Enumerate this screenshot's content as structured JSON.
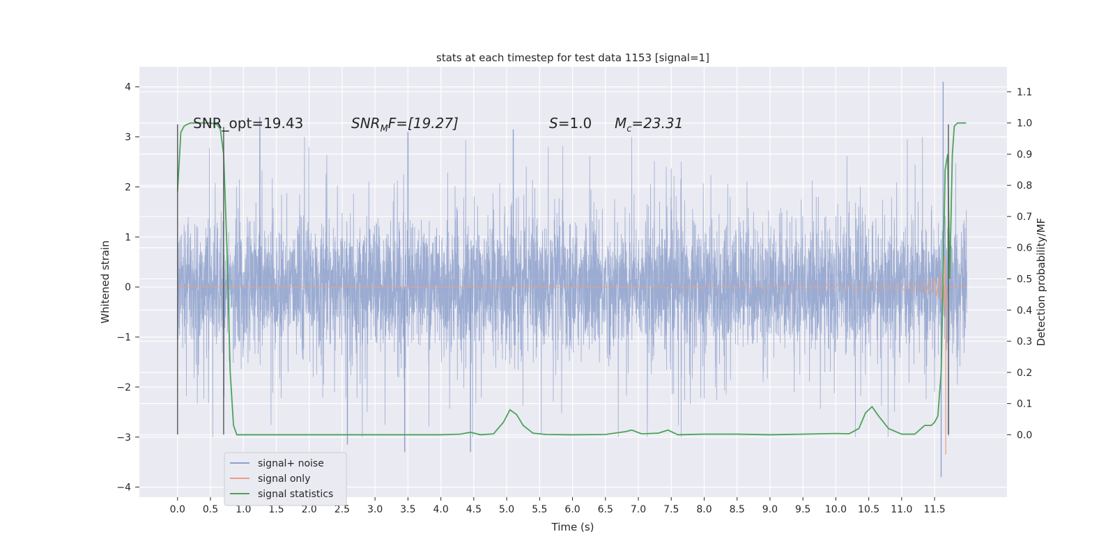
{
  "chart_data": {
    "type": "line",
    "title": "stats at each timestep for test data 1153 [signal=1]",
    "xlabel": "Time (s)",
    "ylabel": "Whitened strain",
    "y2label": "Detection probability/MF",
    "xlim": [
      -0.58,
      12.6
    ],
    "ylim": [
      -4.2,
      4.4
    ],
    "y2lim": [
      -0.2,
      1.18
    ],
    "x_ticks": [
      "0.0",
      "0.5",
      "1.0",
      "1.5",
      "2.0",
      "2.5",
      "3.0",
      "3.5",
      "4.0",
      "4.5",
      "5.0",
      "5.5",
      "6.0",
      "6.5",
      "7.0",
      "7.5",
      "8.0",
      "8.5",
      "9.0",
      "9.5",
      "10.0",
      "10.5",
      "11.0",
      "11.5"
    ],
    "y_ticks": [
      "−4",
      "−3",
      "−2",
      "−1",
      "0",
      "1",
      "2",
      "3",
      "4"
    ],
    "y2_ticks": [
      "0.0",
      "0.1",
      "0.2",
      "0.3",
      "0.4",
      "0.5",
      "0.6",
      "0.7",
      "0.8",
      "0.9",
      "1.0",
      "1.1"
    ],
    "grid": true,
    "legend": {
      "position": "lower-left",
      "entries": [
        {
          "label": "signal+ noise",
          "color": "#8da0cb"
        },
        {
          "label": "signal only",
          "color": "#e8a07f"
        },
        {
          "label": "signal statistics",
          "color": "#4aa35a"
        }
      ]
    },
    "annotations": [
      {
        "text": "SNR_opt=19.43"
      },
      {
        "base": "SNR",
        "sub": "M",
        "rest": "F=[19.27]"
      },
      {
        "base": "S",
        "sub": "",
        "rest": "=1.0"
      },
      {
        "base": "M",
        "sub": "c",
        "rest": "=23.31"
      }
    ],
    "noise": {
      "name": "signal+ noise",
      "x_range": [
        0.0,
        11.99
      ],
      "band": [
        -1.1,
        1.35
      ],
      "notable_peaks": [
        {
          "x": 11.63,
          "y": 4.1
        },
        {
          "x": 11.6,
          "y": -3.8
        },
        {
          "x": 1.25,
          "y": 3.4
        },
        {
          "x": 3.45,
          "y": -3.3
        },
        {
          "x": 4.45,
          "y": -3.3
        },
        {
          "x": 3.5,
          "y": 3.1
        },
        {
          "x": 2.58,
          "y": -3.15
        },
        {
          "x": 5.1,
          "y": 3.15
        }
      ]
    },
    "signal_only": {
      "name": "signal only",
      "chirp_start": 7.0,
      "merger_time": 11.68,
      "peak_amplitude": 3.3,
      "min_value": -3.35
    },
    "statistics": {
      "name": "signal statistics",
      "x": [
        0.0,
        0.05,
        0.1,
        0.15,
        0.2,
        0.3,
        0.4,
        0.5,
        0.6,
        0.65,
        0.7,
        0.75,
        0.8,
        0.85,
        0.9,
        1.0,
        1.5,
        2.0,
        2.5,
        3.0,
        3.5,
        4.0,
        4.3,
        4.45,
        4.6,
        4.8,
        4.95,
        5.05,
        5.15,
        5.25,
        5.4,
        5.6,
        6.0,
        6.5,
        6.8,
        6.9,
        7.05,
        7.3,
        7.45,
        7.6,
        8.0,
        8.5,
        9.0,
        9.5,
        10.0,
        10.2,
        10.35,
        10.45,
        10.55,
        10.65,
        10.8,
        11.0,
        11.2,
        11.35,
        11.45,
        11.5,
        11.55,
        11.6,
        11.63,
        11.66,
        11.7,
        11.73,
        11.77,
        11.8,
        11.85,
        11.9,
        11.98
      ],
      "values": [
        0.78,
        0.97,
        0.99,
        0.996,
        1.0,
        1.0,
        1.0,
        1.0,
        0.995,
        0.98,
        0.9,
        0.6,
        0.2,
        0.03,
        0.0,
        0.0,
        0.0,
        0.0,
        0.0,
        0.0,
        0.0,
        0.0,
        0.002,
        0.008,
        0.0,
        0.003,
        0.04,
        0.08,
        0.065,
        0.03,
        0.005,
        0.001,
        0.0,
        0.001,
        0.01,
        0.015,
        0.003,
        0.005,
        0.015,
        0.0,
        0.002,
        0.002,
        0.0,
        0.002,
        0.004,
        0.003,
        0.02,
        0.07,
        0.09,
        0.06,
        0.02,
        0.002,
        0.002,
        0.03,
        0.03,
        0.04,
        0.06,
        0.2,
        0.5,
        0.85,
        0.9,
        0.5,
        0.9,
        0.99,
        1.0,
        1.0,
        1.0
      ]
    },
    "vertical_markers": [
      {
        "x": 0.0,
        "y_range": [
          -2.95,
          3.25
        ]
      },
      {
        "x": 0.7,
        "y_range": [
          -2.95,
          3.2
        ]
      },
      {
        "x": 11.71,
        "y_range": [
          -2.95,
          3.25
        ]
      }
    ]
  }
}
